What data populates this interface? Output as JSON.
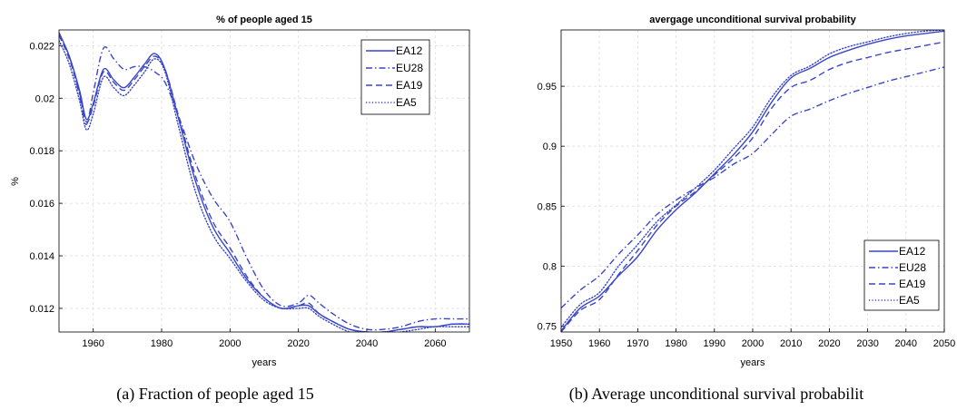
{
  "chart_data": [
    {
      "type": "line",
      "title": "% of people aged 15",
      "xlabel": "years",
      "ylabel": "%",
      "xlim": [
        1950,
        2070
      ],
      "ylim": [
        0.0111,
        0.0226
      ],
      "xticks": [
        1960,
        1980,
        2000,
        2020,
        2040,
        2060
      ],
      "yticks": [
        0.012,
        0.014,
        0.016,
        0.018,
        0.02,
        0.022
      ],
      "ytick_labels": [
        "0.012",
        "0.014",
        "0.016",
        "0.018",
        "0.02",
        "0.022"
      ],
      "grid": true,
      "legend_position": "top-right",
      "color": "#3a46c8",
      "caption": "(a) Fraction of people aged 15",
      "series": [
        {
          "name": "EA12",
          "dash": "solid",
          "x": [
            1950,
            1953,
            1956,
            1958,
            1960,
            1963,
            1966,
            1969,
            1972,
            1975,
            1978,
            1981,
            1985,
            1990,
            1995,
            2000,
            2005,
            2010,
            2015,
            2020,
            2023,
            2026,
            2030,
            2035,
            2040,
            2045,
            2050,
            2055,
            2060,
            2065,
            2070
          ],
          "y": [
            0.0225,
            0.0216,
            0.0203,
            0.0192,
            0.0198,
            0.0211,
            0.0207,
            0.0204,
            0.0208,
            0.0213,
            0.0217,
            0.0211,
            0.0192,
            0.0168,
            0.0151,
            0.0141,
            0.0131,
            0.0124,
            0.012,
            0.0121,
            0.0121,
            0.0118,
            0.0115,
            0.0112,
            0.0111,
            0.0111,
            0.0112,
            0.0113,
            0.0113,
            0.0114,
            0.0114
          ]
        },
        {
          "name": "EU28",
          "dash": "dashdot",
          "x": [
            1950,
            1953,
            1956,
            1958,
            1960,
            1963,
            1966,
            1969,
            1972,
            1975,
            1978,
            1981,
            1985,
            1990,
            1995,
            2000,
            2005,
            2010,
            2015,
            2020,
            2023,
            2026,
            2030,
            2035,
            2040,
            2045,
            2050,
            2055,
            2060,
            2065,
            2070
          ],
          "y": [
            0.0224,
            0.0216,
            0.0201,
            0.019,
            0.0202,
            0.0219,
            0.0215,
            0.0211,
            0.0212,
            0.0212,
            0.021,
            0.0206,
            0.0193,
            0.0175,
            0.0162,
            0.0153,
            0.0139,
            0.0127,
            0.0121,
            0.0122,
            0.0125,
            0.0122,
            0.0118,
            0.0114,
            0.0112,
            0.0112,
            0.0113,
            0.0115,
            0.0116,
            0.0116,
            0.0116
          ]
        },
        {
          "name": "EA19",
          "dash": "dashed",
          "x": [
            1950,
            1953,
            1956,
            1958,
            1960,
            1963,
            1966,
            1969,
            1972,
            1975,
            1978,
            1981,
            1985,
            1990,
            1995,
            2000,
            2005,
            2010,
            2015,
            2020,
            2023,
            2026,
            2030,
            2035,
            2040,
            2045,
            2050,
            2055,
            2060,
            2065,
            2070
          ],
          "y": [
            0.0224,
            0.0215,
            0.0202,
            0.0191,
            0.0197,
            0.021,
            0.0206,
            0.0203,
            0.0207,
            0.0212,
            0.0216,
            0.0211,
            0.0193,
            0.017,
            0.0153,
            0.0143,
            0.0132,
            0.0124,
            0.012,
            0.0121,
            0.0122,
            0.0118,
            0.0115,
            0.0112,
            0.0111,
            0.0111,
            0.0112,
            0.0113,
            0.0113,
            0.0114,
            0.0114
          ]
        },
        {
          "name": "EA5",
          "dash": "dotted",
          "x": [
            1950,
            1953,
            1956,
            1958,
            1960,
            1963,
            1966,
            1969,
            1972,
            1975,
            1978,
            1981,
            1985,
            1990,
            1995,
            2000,
            2005,
            2010,
            2015,
            2020,
            2023,
            2026,
            2030,
            2035,
            2040,
            2045,
            2050,
            2055,
            2060,
            2065,
            2070
          ],
          "y": [
            0.0222,
            0.0213,
            0.0199,
            0.0188,
            0.0194,
            0.0208,
            0.0204,
            0.0201,
            0.0205,
            0.021,
            0.0215,
            0.021,
            0.0189,
            0.0164,
            0.0148,
            0.0139,
            0.013,
            0.0123,
            0.012,
            0.012,
            0.012,
            0.0117,
            0.0114,
            0.0111,
            0.011,
            0.011,
            0.0111,
            0.0112,
            0.0113,
            0.0113,
            0.0113
          ]
        }
      ]
    },
    {
      "type": "line",
      "title": "avergage unconditional survival probability",
      "xlabel": "years",
      "ylabel": "",
      "xlim": [
        1950,
        2050
      ],
      "ylim": [
        0.745,
        0.997
      ],
      "xticks": [
        1950,
        1960,
        1970,
        1980,
        1990,
        2000,
        2010,
        2020,
        2030,
        2040,
        2050
      ],
      "yticks": [
        0.75,
        0.8,
        0.85,
        0.9,
        0.95
      ],
      "ytick_labels": [
        "0.75",
        "0.8",
        "0.85",
        "0.9",
        "0.95"
      ],
      "grid": true,
      "legend_position": "bottom-right",
      "color": "#3a46c8",
      "caption": "(b) Average unconditional survival probabilit",
      "series": [
        {
          "name": "EA12",
          "dash": "solid",
          "x": [
            1950,
            1955,
            1960,
            1965,
            1970,
            1975,
            1980,
            1985,
            1990,
            1995,
            2000,
            2005,
            2010,
            2015,
            2020,
            2025,
            2030,
            2035,
            2040,
            2045,
            2050
          ],
          "y": [
            0.746,
            0.765,
            0.775,
            0.792,
            0.808,
            0.83,
            0.847,
            0.861,
            0.877,
            0.893,
            0.912,
            0.937,
            0.957,
            0.965,
            0.974,
            0.98,
            0.985,
            0.989,
            0.992,
            0.994,
            0.996
          ]
        },
        {
          "name": "EU28",
          "dash": "dashdot",
          "x": [
            1950,
            1955,
            1960,
            1965,
            1970,
            1975,
            1980,
            1985,
            1990,
            1995,
            2000,
            2005,
            2010,
            2015,
            2020,
            2025,
            2030,
            2035,
            2040,
            2045,
            2050
          ],
          "y": [
            0.765,
            0.78,
            0.792,
            0.81,
            0.826,
            0.843,
            0.855,
            0.865,
            0.874,
            0.885,
            0.894,
            0.91,
            0.925,
            0.931,
            0.938,
            0.944,
            0.949,
            0.954,
            0.958,
            0.962,
            0.966
          ]
        },
        {
          "name": "EA19",
          "dash": "dashed",
          "x": [
            1950,
            1955,
            1960,
            1965,
            1970,
            1975,
            1980,
            1985,
            1990,
            1995,
            2000,
            2005,
            2010,
            2015,
            2020,
            2025,
            2030,
            2035,
            2040,
            2045,
            2050
          ],
          "y": [
            0.745,
            0.763,
            0.772,
            0.793,
            0.813,
            0.834,
            0.85,
            0.862,
            0.876,
            0.89,
            0.907,
            0.932,
            0.949,
            0.955,
            0.964,
            0.97,
            0.974,
            0.978,
            0.981,
            0.984,
            0.987
          ]
        },
        {
          "name": "EA5",
          "dash": "dotted",
          "x": [
            1950,
            1955,
            1960,
            1965,
            1970,
            1975,
            1980,
            1985,
            1990,
            1995,
            2000,
            2005,
            2010,
            2015,
            2020,
            2025,
            2030,
            2035,
            2040,
            2045,
            2050
          ],
          "y": [
            0.749,
            0.768,
            0.778,
            0.8,
            0.818,
            0.837,
            0.851,
            0.865,
            0.88,
            0.898,
            0.916,
            0.941,
            0.959,
            0.967,
            0.977,
            0.983,
            0.987,
            0.991,
            0.994,
            0.996,
            0.997
          ]
        }
      ]
    }
  ]
}
